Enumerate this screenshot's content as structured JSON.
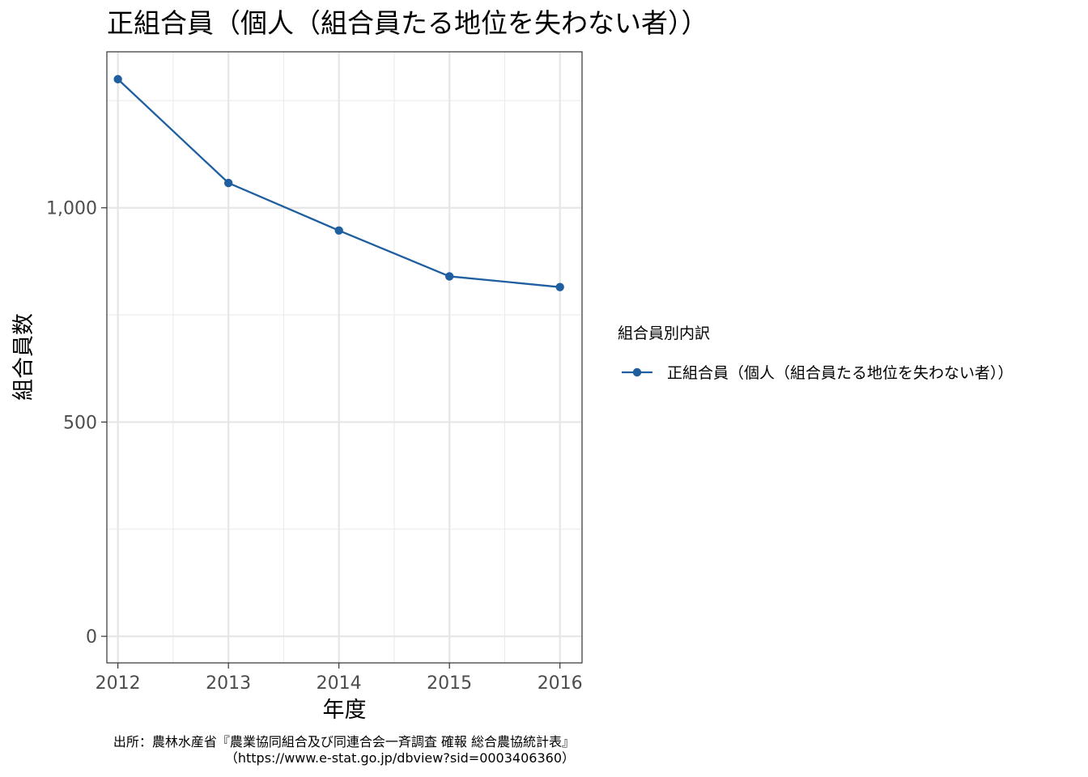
{
  "chart_data": {
    "type": "line",
    "title": "正組合員（個人（組合員たる地位を失わない者））",
    "xlabel": "年度",
    "ylabel": "組合員数",
    "x": [
      2012,
      2013,
      2014,
      2015,
      2016
    ],
    "x_tick_labels": [
      "2012",
      "2013",
      "2014",
      "2015",
      "2016"
    ],
    "y_ticks": [
      0,
      500,
      1000
    ],
    "y_tick_labels": [
      "0",
      "500",
      "1,000"
    ],
    "ylim": [
      -62,
      1364
    ],
    "xlim": [
      2011.9,
      2016.2
    ],
    "grid": true,
    "legend_title": "組合員別内訳",
    "legend_position": "right",
    "series": [
      {
        "name": "正組合員（個人（組合員たる地位を失わない者））",
        "values": [
          1300,
          1058,
          947,
          840,
          815
        ],
        "color": "#1f5e9f"
      }
    ],
    "caption_lines": [
      "出所：農林水産省『農業協同組合及び同連合会一斉調査 確報 総合農協統計表』",
      "（https://www.e-stat.go.jp/dbview?sid=0003406360）"
    ]
  }
}
